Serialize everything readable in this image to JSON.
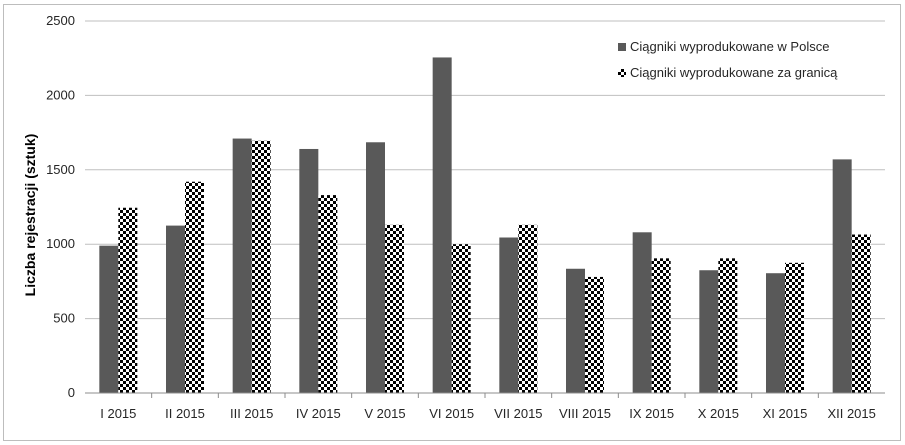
{
  "chart_data": {
    "type": "bar",
    "categories": [
      "I 2015",
      "II 2015",
      "III 2015",
      "IV 2015",
      "V 2015",
      "VI 2015",
      "VII 2015",
      "VIII 2015",
      "IX 2015",
      "X 2015",
      "XI 2015",
      "XII 2015"
    ],
    "series": [
      {
        "name": "Ciągniki wyprodukowane w Polsce",
        "values": [
          990,
          1125,
          1710,
          1640,
          1685,
          2255,
          1045,
          835,
          1080,
          825,
          805,
          1570
        ],
        "color": "#595959",
        "pattern": "solid"
      },
      {
        "name": "Ciągniki wyprodukowane za granicą",
        "values": [
          1245,
          1420,
          1695,
          1330,
          1130,
          1000,
          1130,
          780,
          905,
          905,
          875,
          1065
        ],
        "color": "#000000",
        "pattern": "checker"
      }
    ],
    "ylabel": "Liczba rejestracji (sztuk)",
    "xlabel": "",
    "ylim": [
      0,
      2500
    ],
    "yticks": [
      0,
      500,
      1000,
      1500,
      2000,
      2500
    ],
    "grid": true,
    "legend_position": "top-right"
  }
}
